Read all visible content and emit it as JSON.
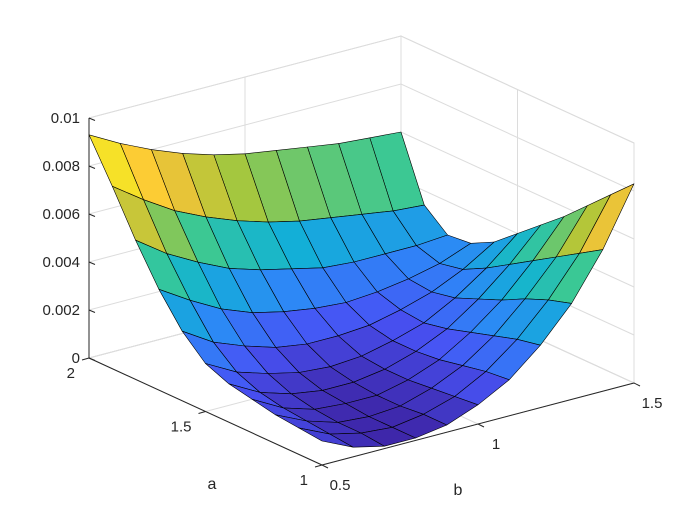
{
  "chart_data": {
    "type": "surface",
    "title": "",
    "xlabel": "b",
    "ylabel": "a",
    "zlabel": "",
    "xlim": [
      0.5,
      1.5
    ],
    "ylim": [
      1,
      2
    ],
    "zlim": [
      0,
      0.01
    ],
    "x_ticks": [
      0.5,
      1,
      1.5
    ],
    "x_tick_labels": [
      "0.5",
      "1",
      "1.5"
    ],
    "y_ticks": [
      1,
      1.5,
      2
    ],
    "y_tick_labels": [
      "1",
      "1.5",
      "2"
    ],
    "z_ticks": [
      0,
      0.002,
      0.004,
      0.006,
      0.008,
      0.01
    ],
    "z_tick_labels": [
      "0",
      "0.002",
      "0.004",
      "0.006",
      "0.008",
      "0.01"
    ],
    "grid": true,
    "box": false,
    "colormap": "parula",
    "view": "3d",
    "x": [
      0.5,
      0.6,
      0.7,
      0.8,
      0.9,
      1.0,
      1.1,
      1.2,
      1.3,
      1.4,
      1.5
    ],
    "y": [
      1.0,
      1.1,
      1.2,
      1.3,
      1.4,
      1.5,
      1.6,
      1.7,
      1.8,
      1.9,
      2.0
    ],
    "z_description_rows": "z[i][j] where i indexes a (1.0 to 2.0) and j indexes b (0.5 to 1.5)",
    "z": [
      [
        0.001,
        0.0004,
        0.0001,
        0.0001,
        0.0003,
        0.0008,
        0.0015,
        0.0026,
        0.004,
        0.0059,
        0.0083
      ],
      [
        0.0011,
        0.0005,
        0.0002,
        0.0001,
        0.0003,
        0.0007,
        0.0014,
        0.0024,
        0.0037,
        0.0053,
        0.0074
      ],
      [
        0.0012,
        0.0006,
        0.0002,
        0.0001,
        0.0002,
        0.0006,
        0.0012,
        0.0021,
        0.0033,
        0.0047,
        0.0065
      ],
      [
        0.0014,
        0.0007,
        0.0003,
        0.0002,
        0.0002,
        0.0005,
        0.001,
        0.0018,
        0.0028,
        0.0041,
        0.0056
      ],
      [
        0.0016,
        0.0009,
        0.0005,
        0.0003,
        0.0003,
        0.0005,
        0.0009,
        0.0015,
        0.0024,
        0.0035,
        0.0048
      ],
      [
        0.002,
        0.0013,
        0.0009,
        0.0006,
        0.0005,
        0.0006,
        0.0009,
        0.0013,
        0.002,
        0.0029,
        0.004
      ],
      [
        0.0029,
        0.0021,
        0.0016,
        0.0012,
        0.001,
        0.001,
        0.0011,
        0.0014,
        0.0018,
        0.0024,
        0.0032
      ],
      [
        0.0042,
        0.0034,
        0.0027,
        0.0022,
        0.0019,
        0.0017,
        0.0016,
        0.0017,
        0.0019,
        0.0022,
        0.0027
      ],
      [
        0.0058,
        0.0049,
        0.0042,
        0.0036,
        0.0032,
        0.0029,
        0.0026,
        0.0025,
        0.0025,
        0.0025,
        0.0026
      ],
      [
        0.0076,
        0.0067,
        0.0059,
        0.0053,
        0.0048,
        0.0044,
        0.0041,
        0.0039,
        0.0037,
        0.0035,
        0.0034
      ],
      [
        0.0093,
        0.0086,
        0.008,
        0.0075,
        0.0071,
        0.0068,
        0.0066,
        0.0064,
        0.0062,
        0.0061,
        0.006
      ]
    ]
  }
}
